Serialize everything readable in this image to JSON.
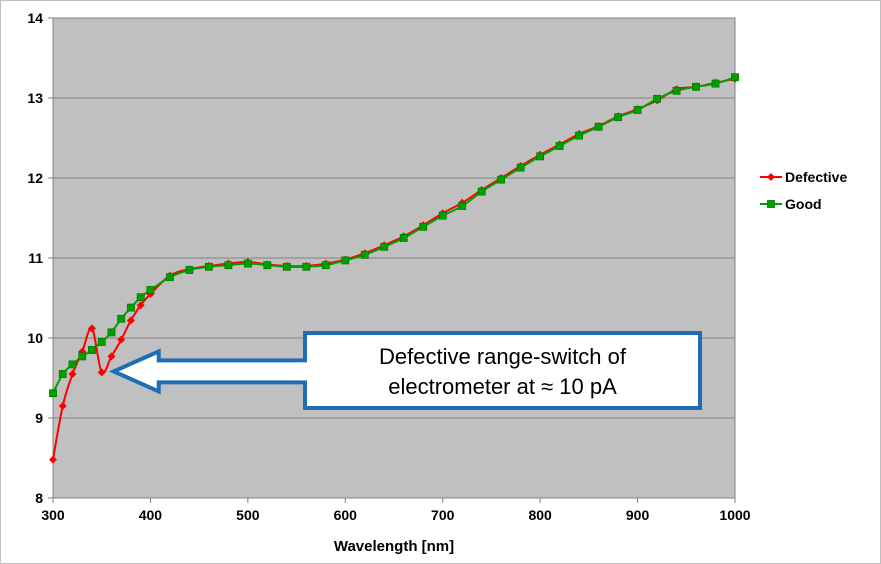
{
  "chart_data": {
    "type": "line",
    "title": "",
    "xlabel": "Wavelength [nm]",
    "ylabel": "",
    "xlim": [
      300,
      1000
    ],
    "ylim": [
      8,
      14
    ],
    "x_ticks": [
      300,
      400,
      500,
      600,
      700,
      800,
      900,
      1000
    ],
    "y_ticks": [
      8,
      9,
      10,
      11,
      12,
      13,
      14
    ],
    "grid": "horizontal",
    "plot_background": "#c0c0c0",
    "legend": {
      "position": "right"
    },
    "series": [
      {
        "name": "Defective",
        "color": "#ff0000",
        "marker": "diamond",
        "x": [
          300,
          310,
          320,
          330,
          340,
          350,
          360,
          370,
          380,
          390,
          400,
          420,
          440,
          460,
          480,
          500,
          520,
          540,
          560,
          580,
          600,
          620,
          640,
          660,
          680,
          700,
          720,
          740,
          760,
          780,
          800,
          820,
          840,
          860,
          880,
          900,
          920,
          940,
          960,
          980,
          1000
        ],
        "y": [
          8.48,
          9.15,
          9.55,
          9.83,
          10.12,
          9.57,
          9.77,
          9.98,
          10.22,
          10.41,
          10.55,
          10.78,
          10.86,
          10.9,
          10.93,
          10.95,
          10.92,
          10.9,
          10.9,
          10.93,
          10.98,
          11.06,
          11.16,
          11.27,
          11.41,
          11.56,
          11.69,
          11.85,
          12.0,
          12.15,
          12.29,
          12.42,
          12.55,
          12.65,
          12.77,
          12.86,
          12.97,
          13.11,
          13.14,
          13.19,
          13.24
        ]
      },
      {
        "name": "Good",
        "color": "#00a000",
        "marker": "square",
        "x": [
          300,
          310,
          320,
          330,
          340,
          350,
          360,
          370,
          380,
          390,
          400,
          420,
          440,
          460,
          480,
          500,
          520,
          540,
          560,
          580,
          600,
          620,
          640,
          660,
          680,
          700,
          720,
          740,
          760,
          780,
          800,
          820,
          840,
          860,
          880,
          900,
          920,
          940,
          960,
          980,
          1000
        ],
        "y": [
          9.31,
          9.55,
          9.67,
          9.77,
          9.85,
          9.95,
          10.07,
          10.24,
          10.38,
          10.51,
          10.6,
          10.76,
          10.85,
          10.89,
          10.91,
          10.93,
          10.91,
          10.89,
          10.89,
          10.91,
          10.97,
          11.04,
          11.14,
          11.25,
          11.39,
          11.53,
          11.65,
          11.83,
          11.98,
          12.13,
          12.27,
          12.4,
          12.53,
          12.64,
          12.76,
          12.85,
          12.99,
          13.09,
          13.14,
          13.18,
          13.26
        ]
      }
    ],
    "annotation": {
      "lines": [
        "Defective range-switch of",
        "electrometer at  ≈ 10 pA"
      ],
      "arrow_points_to": {
        "x": 350,
        "y": 9.57
      },
      "border_color": "#1f6db5"
    }
  }
}
